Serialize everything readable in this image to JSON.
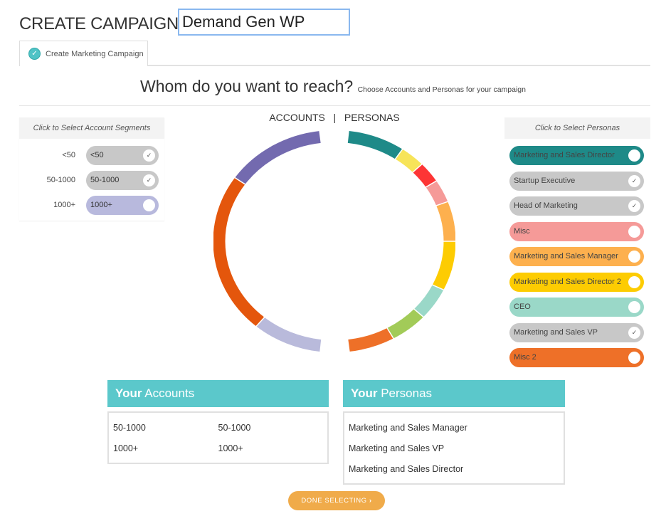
{
  "header": {
    "title": "CREATE CAMPAIGN",
    "campaign_name": "Demand Gen WP"
  },
  "tab": {
    "label": "Create Marketing Campaign"
  },
  "question": {
    "main": "Whom do you want to reach?",
    "sub": "Choose Accounts and Personas for your campaign"
  },
  "accounts_panel": {
    "heading": "Click to Select Account Segments",
    "items": [
      {
        "label": "<50",
        "pill": "<50",
        "selected": true,
        "color": "#c8c8c8"
      },
      {
        "label": "50-1000",
        "pill": "50-1000",
        "selected": true,
        "color": "#c8c8c8"
      },
      {
        "label": "1000+",
        "pill": "1000+",
        "selected": false,
        "color": "#b8b9dd"
      }
    ]
  },
  "personas_panel": {
    "heading": "Click to Select Personas",
    "items": [
      {
        "label": "Marketing and Sales Director",
        "selected": false,
        "color": "#1e8a88"
      },
      {
        "label": "Startup Executive",
        "selected": true,
        "color": "#c8c8c8"
      },
      {
        "label": "Head of Marketing",
        "selected": true,
        "color": "#c8c8c8"
      },
      {
        "label": "Misc",
        "selected": false,
        "color": "#f59a98"
      },
      {
        "label": "Marketing and Sales Manager",
        "selected": false,
        "color": "#fdb04e"
      },
      {
        "label": "Marketing and Sales Director 2",
        "selected": false,
        "color": "#fdcc02"
      },
      {
        "label": "CEO",
        "selected": false,
        "color": "#9ad8c8"
      },
      {
        "label": "Marketing and Sales VP",
        "selected": true,
        "color": "#c8c8c8"
      },
      {
        "label": "Misc 2",
        "selected": false,
        "color": "#ee7028"
      }
    ]
  },
  "chart_data": {
    "type": "donut",
    "title_left": "ACCOUNTS",
    "separator": "|",
    "title_right": "PERSONAS",
    "accounts_arcs_deg": [
      {
        "start": 305,
        "end": 353,
        "color": "#736aaf"
      },
      {
        "start": 220,
        "end": 305,
        "color": "#e4560c"
      },
      {
        "start": 187,
        "end": 220,
        "color": "#b9badb"
      }
    ],
    "personas_arcs_deg": [
      {
        "start": 7,
        "end": 34,
        "color": "#1e8a88"
      },
      {
        "start": 34,
        "end": 46,
        "color": "#f7e459"
      },
      {
        "start": 46,
        "end": 57,
        "color": "#fd3535"
      },
      {
        "start": 57,
        "end": 69,
        "color": "#f59a98"
      },
      {
        "start": 69,
        "end": 90,
        "color": "#fdb04e"
      },
      {
        "start": 90,
        "end": 116,
        "color": "#fdcc02"
      },
      {
        "start": 116,
        "end": 133,
        "color": "#9ad8c8"
      },
      {
        "start": 133,
        "end": 151,
        "color": "#a2cb58"
      },
      {
        "start": 151,
        "end": 173,
        "color": "#ee7028"
      }
    ]
  },
  "your_accounts": {
    "bold": "Your",
    "title": "Accounts",
    "rows": [
      [
        "50-1000",
        "50-1000"
      ],
      [
        "1000+",
        "1000+"
      ]
    ]
  },
  "your_personas": {
    "bold": "Your",
    "title": "Personas",
    "rows": [
      "Marketing and Sales Manager",
      "Marketing and Sales VP",
      "Marketing and Sales Director"
    ]
  },
  "done_button": {
    "label": "DONE SELECTING",
    "icon": "chevron-right-icon"
  }
}
